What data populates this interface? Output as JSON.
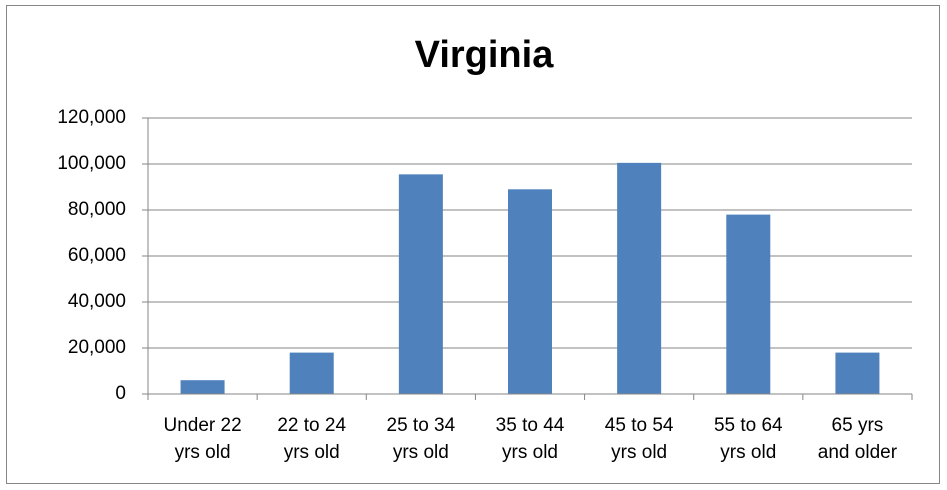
{
  "chart_data": {
    "type": "bar",
    "title": "Virginia",
    "categories": [
      "Under 22\nyrs old",
      "22 to 24\nyrs old",
      "25 to 34\nyrs old",
      "35 to 44\nyrs old",
      "45 to 54\nyrs old",
      "55 to 64\nyrs old",
      "65 yrs\nand older"
    ],
    "values": [
      6000,
      18000,
      95500,
      89000,
      100500,
      78000,
      18000
    ],
    "color": "#4f81bd",
    "ylim": [
      0,
      120000
    ],
    "yticks": [
      0,
      {
        "value": 20000,
        "label": "20,000"
      },
      {
        "value": 40000,
        "label": "40,000"
      },
      {
        "value": 60000,
        "label": "60,000"
      },
      {
        "value": 80000,
        "label": "80,000"
      },
      {
        "value": 100000,
        "label": "100,000"
      },
      {
        "value": 120000,
        "label": "120,000"
      }
    ],
    "grid": true
  }
}
